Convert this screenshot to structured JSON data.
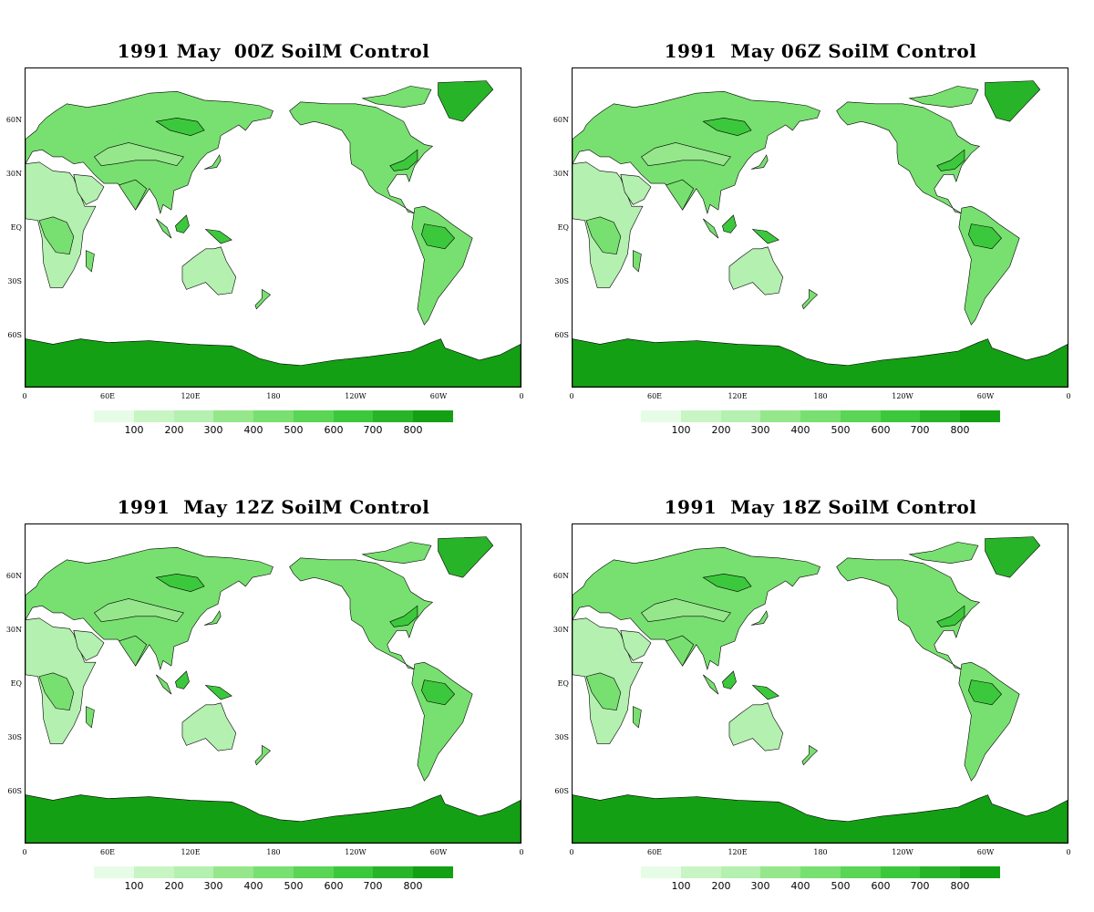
{
  "panels": [
    {
      "title": "1991 May  00Z SoilM Control"
    },
    {
      "title": "1991  May 06Z SoilM Control"
    },
    {
      "title": "1991  May 12Z SoilM Control"
    },
    {
      "title": "1991  May 18Z SoilM Control"
    }
  ],
  "axes": {
    "lat_labels": [
      "60N",
      "30N",
      "EQ",
      "30S",
      "60S"
    ],
    "lon_labels": [
      "0",
      "60E",
      "120E",
      "180",
      "120W",
      "60W",
      "0"
    ]
  },
  "colorbar": {
    "labels": [
      "100",
      "200",
      "300",
      "400",
      "500",
      "600",
      "700",
      "800"
    ],
    "colors": [
      "#e6fce6",
      "#c8f5c3",
      "#b4f0b0",
      "#96e68c",
      "#78e070",
      "#5ad555",
      "#3cc83c",
      "#28b428",
      "#14a014"
    ]
  },
  "map_colors": {
    "antarctica": "#14a014",
    "greenland": "#28b428",
    "land_base": "#78e070",
    "land_dry": "#b4f0b0",
    "land_wet": "#3cc83c",
    "land_mid": "#96e68c",
    "coast": "#000000",
    "ocean": "#ffffff"
  },
  "chart_data": {
    "type": "heatmap",
    "variable": "SoilM",
    "ylim": [
      -90,
      90
    ],
    "xlim": [
      0,
      360
    ],
    "lat_ticks": [
      "60N",
      "30N",
      "EQ",
      "30S",
      "60S"
    ],
    "lon_ticks": [
      "0",
      "60E",
      "120E",
      "180",
      "120W",
      "60W",
      "0"
    ],
    "color_levels": [
      100,
      200,
      300,
      400,
      500,
      600,
      700,
      800
    ],
    "panels": [
      "1991 May  00Z SoilM Control",
      "1991  May 06Z SoilM Control",
      "1991  May 12Z SoilM Control",
      "1991  May 18Z SoilM Control"
    ]
  }
}
